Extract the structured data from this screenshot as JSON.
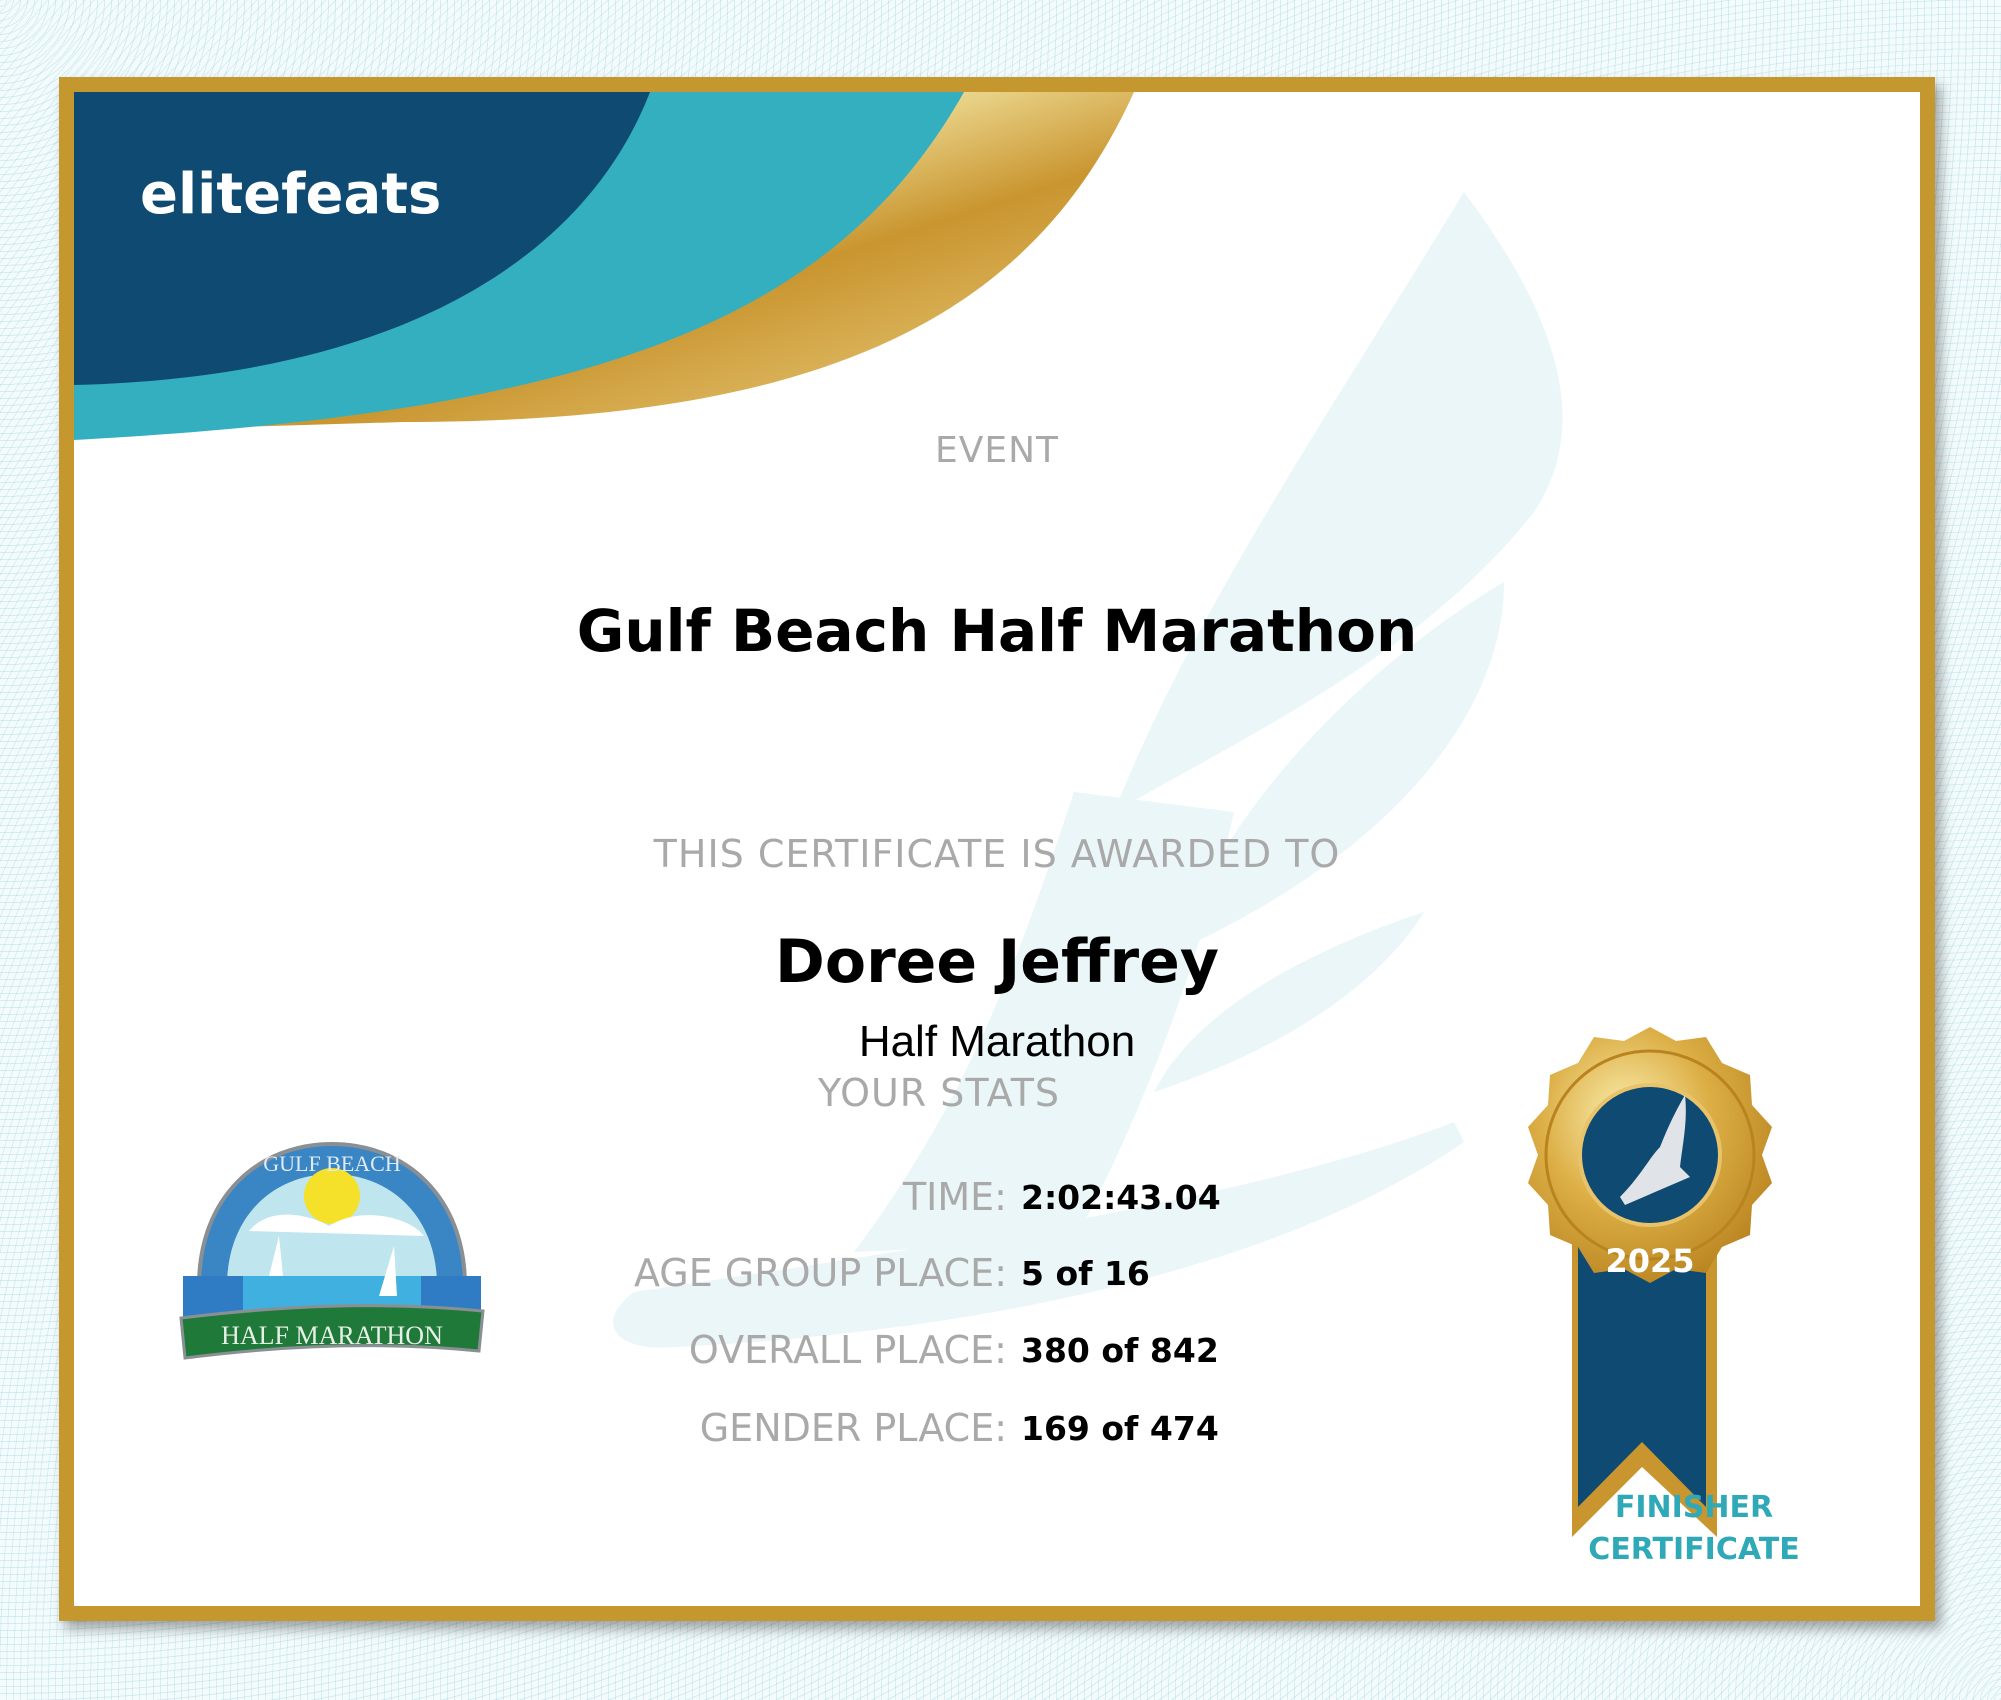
{
  "brand": {
    "name": "elitefeats",
    "colors": {
      "navy": "#0f4a72",
      "teal": "#33afc0",
      "gold": "#c4972f"
    }
  },
  "event": {
    "label": "EVENT",
    "name": "Gulf Beach Half Marathon"
  },
  "award": {
    "label": "THIS CERTIFICATE IS AWARDED TO",
    "name": "Doree Jeffrey",
    "race": "Half Marathon"
  },
  "stats": {
    "heading": "YOUR STATS",
    "rows": [
      {
        "label": "TIME:",
        "value": "2:02:43.04"
      },
      {
        "label": "AGE GROUP PLACE:",
        "value": "5 of 16"
      },
      {
        "label": "OVERALL PLACE:",
        "value": "380 of 842"
      },
      {
        "label": "GENDER PLACE:",
        "value": "169 of 474"
      }
    ]
  },
  "event_logo": {
    "top_text": "GULF BEACH",
    "banner": "HALF MARATHON"
  },
  "medal": {
    "year": "2025",
    "icon": "winged-foot-icon",
    "caption_line1": "FINISHER",
    "caption_line2": "CERTIFICATE"
  }
}
